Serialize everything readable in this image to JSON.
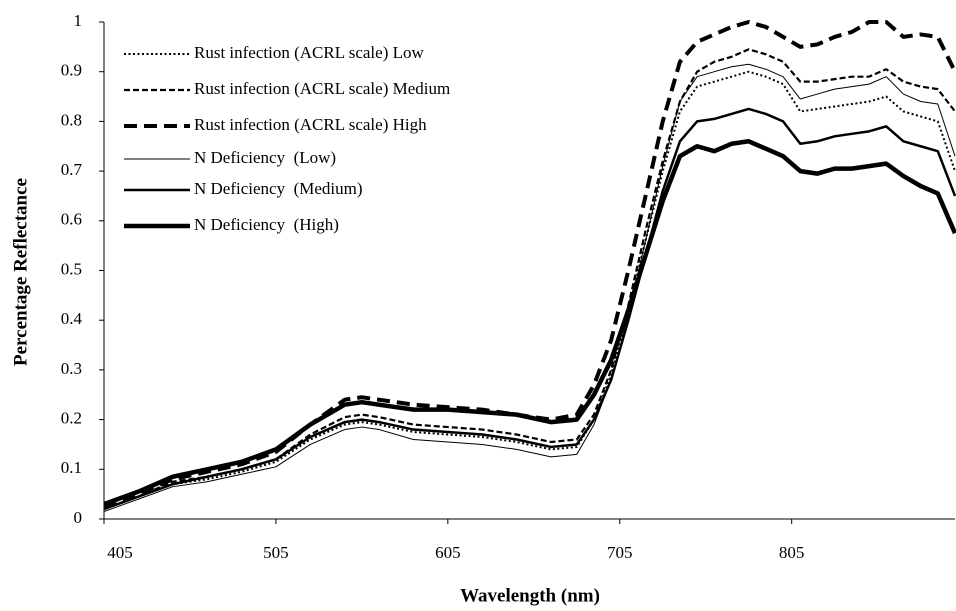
{
  "chart_data": {
    "type": "line",
    "x_label": "Wavelength (nm)",
    "y_label": "Percentage Reflectance",
    "x": [
      405,
      425,
      445,
      465,
      485,
      505,
      525,
      545,
      555,
      565,
      585,
      605,
      625,
      645,
      665,
      680,
      690,
      700,
      710,
      720,
      730,
      740,
      750,
      760,
      770,
      780,
      790,
      800,
      810,
      820,
      830,
      840,
      850,
      860,
      870,
      880,
      890,
      900
    ],
    "xlim": [
      405,
      900
    ],
    "xticks": [
      405,
      505,
      605,
      705,
      805
    ],
    "ylim": [
      0,
      1
    ],
    "yticks": [
      0,
      0.1,
      0.2,
      0.3,
      0.4,
      0.5,
      0.6,
      0.7,
      0.8,
      0.9,
      1
    ],
    "grid": false,
    "legend": "top-left",
    "series": [
      {
        "name": "Rust infection (ACRL scale) Low",
        "color": "#000000",
        "style": "dotted",
        "values": [
          0.02,
          0.045,
          0.07,
          0.08,
          0.095,
          0.115,
          0.16,
          0.19,
          0.195,
          0.19,
          0.175,
          0.17,
          0.165,
          0.155,
          0.14,
          0.145,
          0.2,
          0.29,
          0.42,
          0.56,
          0.7,
          0.82,
          0.87,
          0.88,
          0.89,
          0.9,
          0.89,
          0.875,
          0.82,
          0.825,
          0.83,
          0.835,
          0.84,
          0.85,
          0.82,
          0.81,
          0.8,
          0.7
        ]
      },
      {
        "name": "Rust infection (ACRL scale) Medium",
        "color": "#000000",
        "style": "dashed",
        "values": [
          0.02,
          0.045,
          0.075,
          0.085,
          0.1,
          0.12,
          0.17,
          0.205,
          0.21,
          0.205,
          0.19,
          0.185,
          0.18,
          0.17,
          0.155,
          0.16,
          0.21,
          0.3,
          0.43,
          0.58,
          0.72,
          0.84,
          0.9,
          0.92,
          0.93,
          0.945,
          0.935,
          0.92,
          0.88,
          0.88,
          0.885,
          0.89,
          0.89,
          0.905,
          0.88,
          0.87,
          0.865,
          0.82
        ]
      },
      {
        "name": "Rust infection (ACRL scale) High",
        "color": "#000000",
        "style": "long-dash",
        "values": [
          0.025,
          0.05,
          0.08,
          0.095,
          0.11,
          0.135,
          0.19,
          0.24,
          0.245,
          0.24,
          0.23,
          0.225,
          0.22,
          0.21,
          0.2,
          0.21,
          0.27,
          0.36,
          0.5,
          0.65,
          0.8,
          0.92,
          0.96,
          0.975,
          0.99,
          1.0,
          0.99,
          0.97,
          0.95,
          0.955,
          0.97,
          0.98,
          1.0,
          1.0,
          0.97,
          0.975,
          0.97,
          0.9
        ]
      },
      {
        "name": "N Deficiency  (Low)",
        "color": "#000000",
        "style": "thin",
        "values": [
          0.015,
          0.04,
          0.065,
          0.075,
          0.09,
          0.105,
          0.15,
          0.18,
          0.185,
          0.18,
          0.16,
          0.155,
          0.15,
          0.14,
          0.125,
          0.13,
          0.19,
          0.28,
          0.41,
          0.56,
          0.71,
          0.84,
          0.89,
          0.9,
          0.91,
          0.915,
          0.905,
          0.89,
          0.845,
          0.855,
          0.865,
          0.87,
          0.875,
          0.89,
          0.855,
          0.84,
          0.835,
          0.73
        ]
      },
      {
        "name": "N Deficiency  (Medium)",
        "color": "#000000",
        "style": "medium",
        "values": [
          0.02,
          0.045,
          0.07,
          0.085,
          0.1,
          0.12,
          0.165,
          0.195,
          0.2,
          0.195,
          0.18,
          0.175,
          0.17,
          0.16,
          0.145,
          0.15,
          0.2,
          0.28,
          0.4,
          0.53,
          0.66,
          0.76,
          0.8,
          0.805,
          0.815,
          0.825,
          0.815,
          0.8,
          0.755,
          0.76,
          0.77,
          0.775,
          0.78,
          0.79,
          0.76,
          0.75,
          0.74,
          0.65
        ]
      },
      {
        "name": "N Deficiency  (High)",
        "color": "#000000",
        "style": "thick",
        "values": [
          0.03,
          0.055,
          0.085,
          0.1,
          0.115,
          0.14,
          0.19,
          0.23,
          0.235,
          0.23,
          0.22,
          0.22,
          0.215,
          0.21,
          0.195,
          0.2,
          0.25,
          0.32,
          0.42,
          0.53,
          0.64,
          0.73,
          0.75,
          0.74,
          0.755,
          0.76,
          0.745,
          0.73,
          0.7,
          0.695,
          0.705,
          0.705,
          0.71,
          0.715,
          0.69,
          0.67,
          0.655,
          0.575
        ]
      }
    ]
  }
}
